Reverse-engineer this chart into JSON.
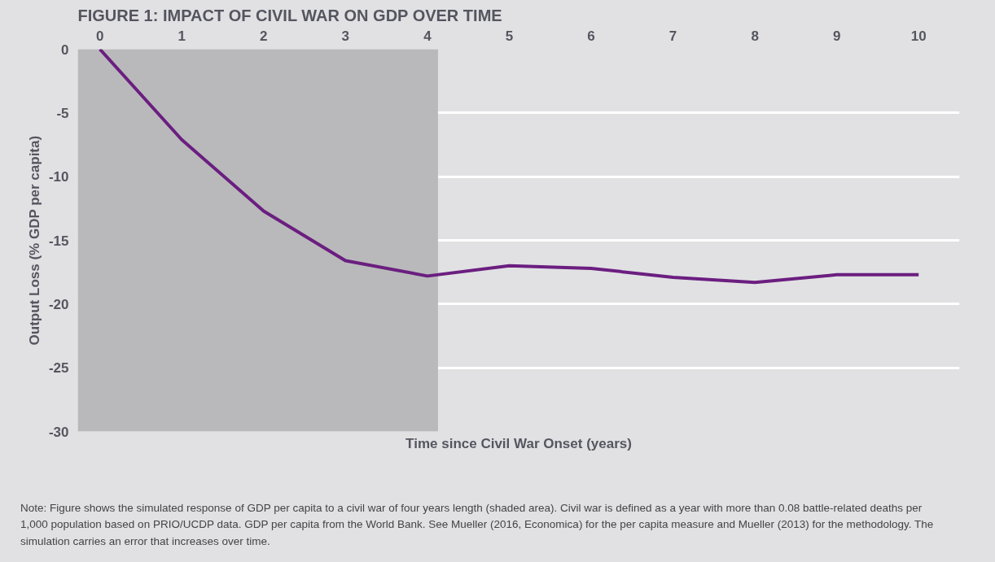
{
  "chart_data": {
    "type": "line",
    "title": "FIGURE 1: IMPACT OF CIVIL WAR ON GDP OVER TIME",
    "xlabel": "Time since Civil War Onset (years)",
    "ylabel": "Output Loss (% GDP per capita)",
    "x": [
      0,
      1,
      2,
      3,
      4,
      5,
      6,
      7,
      8,
      9,
      10
    ],
    "series": [
      {
        "color": "#6b1e80",
        "values": [
          0,
          -7.1,
          -12.7,
          -16.6,
          -17.8,
          -17.0,
          -17.2,
          -17.9,
          -18.3,
          -17.7,
          -17.7
        ]
      }
    ],
    "xlim": [
      -0.27,
      10.5
    ],
    "xticks": [
      0,
      1,
      2,
      3,
      4,
      5,
      6,
      7,
      8,
      9,
      10
    ],
    "ylim": [
      -30,
      0
    ],
    "yticks": [
      0,
      -5,
      -10,
      -15,
      -20,
      -25,
      -30
    ],
    "grid": "y",
    "marker": "none",
    "line_style": "solid",
    "bands": [
      {
        "axis": "x",
        "from": -0.27,
        "to": 4.13,
        "color": "#b9b9bb"
      }
    ],
    "annotations": [
      "Note: Figure shows the simulated response of GDP per capita to a civil war of four years length (shaded area). Civil war is defined as a year with more than 0.08 battle-related deaths per 1,000 population based on PRIO/UCDP data. GDP per capita from the World Bank. See Mueller (2016, Economica) for the per capita measure and Mueller (2013) for the methodology. The simulation carries an error that increases over time."
    ]
  }
}
